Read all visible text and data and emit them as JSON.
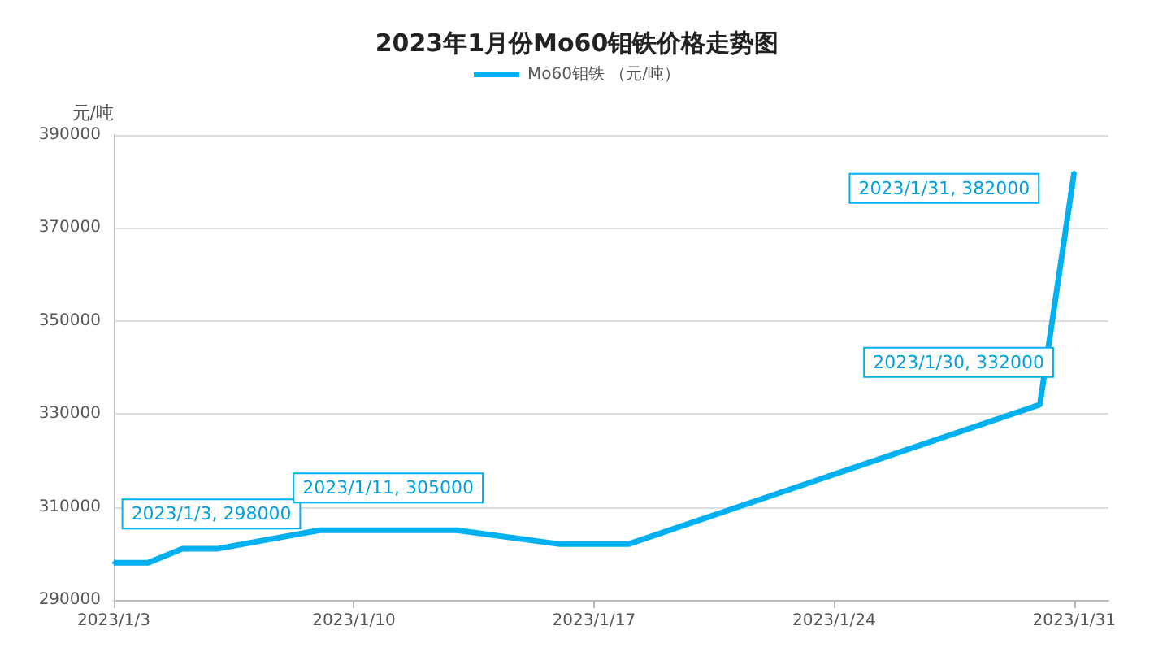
{
  "chart_data": {
    "type": "line",
    "title": "2023年1月份Mo60钼铁价格走势图",
    "ylabel": "元/吨",
    "x": [
      "2023-01-03",
      "2023-01-04",
      "2023-01-05",
      "2023-01-06",
      "2023-01-09",
      "2023-01-10",
      "2023-01-11",
      "2023-01-12",
      "2023-01-13",
      "2023-01-16",
      "2023-01-17",
      "2023-01-18",
      "2023-01-30",
      "2023-01-31"
    ],
    "series": [
      {
        "name": "Mo60钼铁 （元/吨）",
        "color": "#00b0f0",
        "values": [
          298000,
          298000,
          301000,
          301000,
          305000,
          305000,
          305000,
          305000,
          305000,
          302000,
          302000,
          302000,
          332000,
          382000
        ]
      }
    ],
    "xlim": [
      "2023-01-03",
      "2023-02-01"
    ],
    "xticks": [
      {
        "value": "2023-01-03",
        "label": "2023/1/3"
      },
      {
        "value": "2023-01-10",
        "label": "2023/1/10"
      },
      {
        "value": "2023-01-17",
        "label": "2023/1/17"
      },
      {
        "value": "2023-01-24",
        "label": "2023/1/24"
      },
      {
        "value": "2023-01-31",
        "label": "2023/1/31"
      }
    ],
    "ylim": [
      290000,
      390000
    ],
    "yticks": [
      290000,
      310000,
      330000,
      350000,
      370000,
      390000
    ],
    "grid": "y",
    "legend": "top",
    "marker": "none",
    "line_style": "solid",
    "annotations": [
      {
        "text": "2023/1/3, 298000",
        "x": "2023-01-03",
        "y": 298000
      },
      {
        "text": "2023/1/11, 305000",
        "x": "2023-01-11",
        "y": 305000
      },
      {
        "text": "2023/1/30, 332000",
        "x": "2023-01-30",
        "y": 332000
      },
      {
        "text": "2023/1/31, 382000",
        "x": "2023-01-31",
        "y": 382000
      }
    ]
  }
}
